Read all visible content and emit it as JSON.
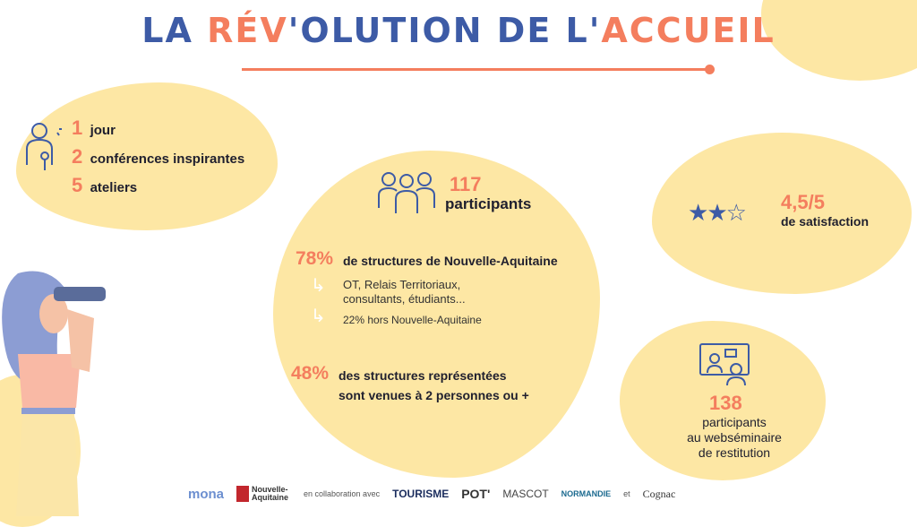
{
  "title": {
    "part1": "LA ",
    "part2": "RÉV",
    "part3": "'OLUTION DE L'",
    "part4": "ACCUEIL"
  },
  "colors": {
    "blue": "#3d5ba6",
    "orange": "#f47e5e",
    "yellow": "#fde7a4"
  },
  "program": [
    {
      "num": "1",
      "label": "jour"
    },
    {
      "num": "2",
      "label": "conférences inspirantes"
    },
    {
      "num": "5",
      "label": "ateliers"
    }
  ],
  "participants": {
    "num": "117",
    "label": "participants"
  },
  "regions": {
    "pct": "78%",
    "label": "de structures de Nouvelle-Aquitaine",
    "sub1": "OT, Relais Territoriaux, consultants, étudiants...",
    "sub2": "22% hors Nouvelle-Aquitaine"
  },
  "pairs": {
    "pct": "48%",
    "line1": "des structures représentées",
    "line2": "sont venues à 2 personnes ou +"
  },
  "satisfaction": {
    "score": "4,5/5",
    "label": "de satisfaction",
    "rating": 4.5,
    "max": 5
  },
  "webinar": {
    "num": "138",
    "line1": "participants",
    "line2": "au webséminaire",
    "line3": "de restitution"
  },
  "footer": {
    "mona": "mona",
    "na": "Nouvelle-Aquitaine",
    "collab": "en collaboration avec",
    "tourisme": "TOURISME",
    "pot": "POT'",
    "mascot": "MASCOT",
    "normandie": "NORMANDIE",
    "et": "et",
    "cognac": "Cognac"
  }
}
